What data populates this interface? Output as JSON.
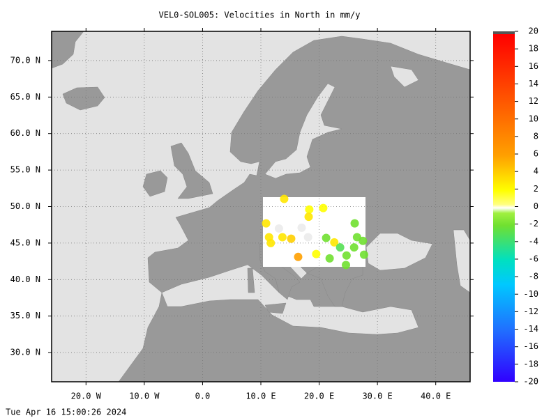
{
  "map": {
    "title": "VEL0-SOL005: Velocities in North in mm/y",
    "lonlim": [
      -25.9,
      45.9
    ],
    "latlim": [
      26.0,
      74.0
    ],
    "lon_ticks": [
      {
        "value": -20,
        "label": "20.0 W"
      },
      {
        "value": -10,
        "label": "10.0 W"
      },
      {
        "value": 0,
        "label": "0.0"
      },
      {
        "value": 10,
        "label": "10.0 E"
      },
      {
        "value": 20,
        "label": "20.0 E"
      },
      {
        "value": 30,
        "label": "30.0 E"
      },
      {
        "value": 40,
        "label": "40.0 E"
      }
    ],
    "lat_ticks": [
      {
        "value": 70,
        "label": "70.0 N"
      },
      {
        "value": 65,
        "label": "65.0 N"
      },
      {
        "value": 60,
        "label": "60.0 N"
      },
      {
        "value": 55,
        "label": "55.0 N"
      },
      {
        "value": 50,
        "label": "50.0 N"
      },
      {
        "value": 45,
        "label": "45.0 N"
      },
      {
        "value": 40,
        "label": "40.0 N"
      },
      {
        "value": 35,
        "label": "35.0 N"
      },
      {
        "value": 30,
        "label": "30.0 N"
      }
    ],
    "stations": [
      {
        "lon": 14.0,
        "lat": 51.05,
        "value": 3
      },
      {
        "lon": 18.3,
        "lat": 49.6,
        "value": 2
      },
      {
        "lon": 20.7,
        "lat": 49.8,
        "value": 2
      },
      {
        "lon": 18.2,
        "lat": 48.6,
        "value": 3
      },
      {
        "lon": 10.9,
        "lat": 47.7,
        "value": 3
      },
      {
        "lon": 11.4,
        "lat": 45.8,
        "value": 3
      },
      {
        "lon": 11.7,
        "lat": 45.0,
        "value": 3
      },
      {
        "lon": 13.7,
        "lat": 45.8,
        "value": 3
      },
      {
        "lon": 15.2,
        "lat": 45.6,
        "value": 4
      },
      {
        "lon": 16.4,
        "lat": 43.1,
        "value": 6
      },
      {
        "lon": 19.5,
        "lat": 43.5,
        "value": 2
      },
      {
        "lon": 22.6,
        "lat": 45.1,
        "value": 3
      },
      {
        "lon": 21.2,
        "lat": 45.7,
        "value": -2
      },
      {
        "lon": 26.1,
        "lat": 47.7,
        "value": -2
      },
      {
        "lon": 26.5,
        "lat": 45.8,
        "value": -2
      },
      {
        "lon": 23.6,
        "lat": 44.4,
        "value": -3
      },
      {
        "lon": 26.0,
        "lat": 44.4,
        "value": -2
      },
      {
        "lon": 24.7,
        "lat": 43.3,
        "value": -2
      },
      {
        "lon": 21.8,
        "lat": 42.9,
        "value": -2
      },
      {
        "lon": 27.5,
        "lat": 45.3,
        "value": -2
      },
      {
        "lon": 27.7,
        "lat": 43.4,
        "value": -2
      },
      {
        "lon": 24.6,
        "lat": 42.0,
        "value": -2
      },
      {
        "lon": 13.1,
        "lat": 47.0,
        "value": 0
      },
      {
        "lon": 18.1,
        "lat": 45.8,
        "value": 0
      },
      {
        "lon": 17.0,
        "lat": 47.1,
        "value": 0
      }
    ]
  },
  "colorbar": {
    "lim": [
      -20,
      20
    ],
    "ticks": [
      20,
      18,
      16,
      14,
      12,
      10,
      8,
      6,
      4,
      2,
      0,
      -2,
      -4,
      -6,
      -8,
      -10,
      -12,
      -14,
      -16,
      -18,
      -20
    ]
  },
  "timestamp": "Tue Apr 16 15:00:26 2024"
}
